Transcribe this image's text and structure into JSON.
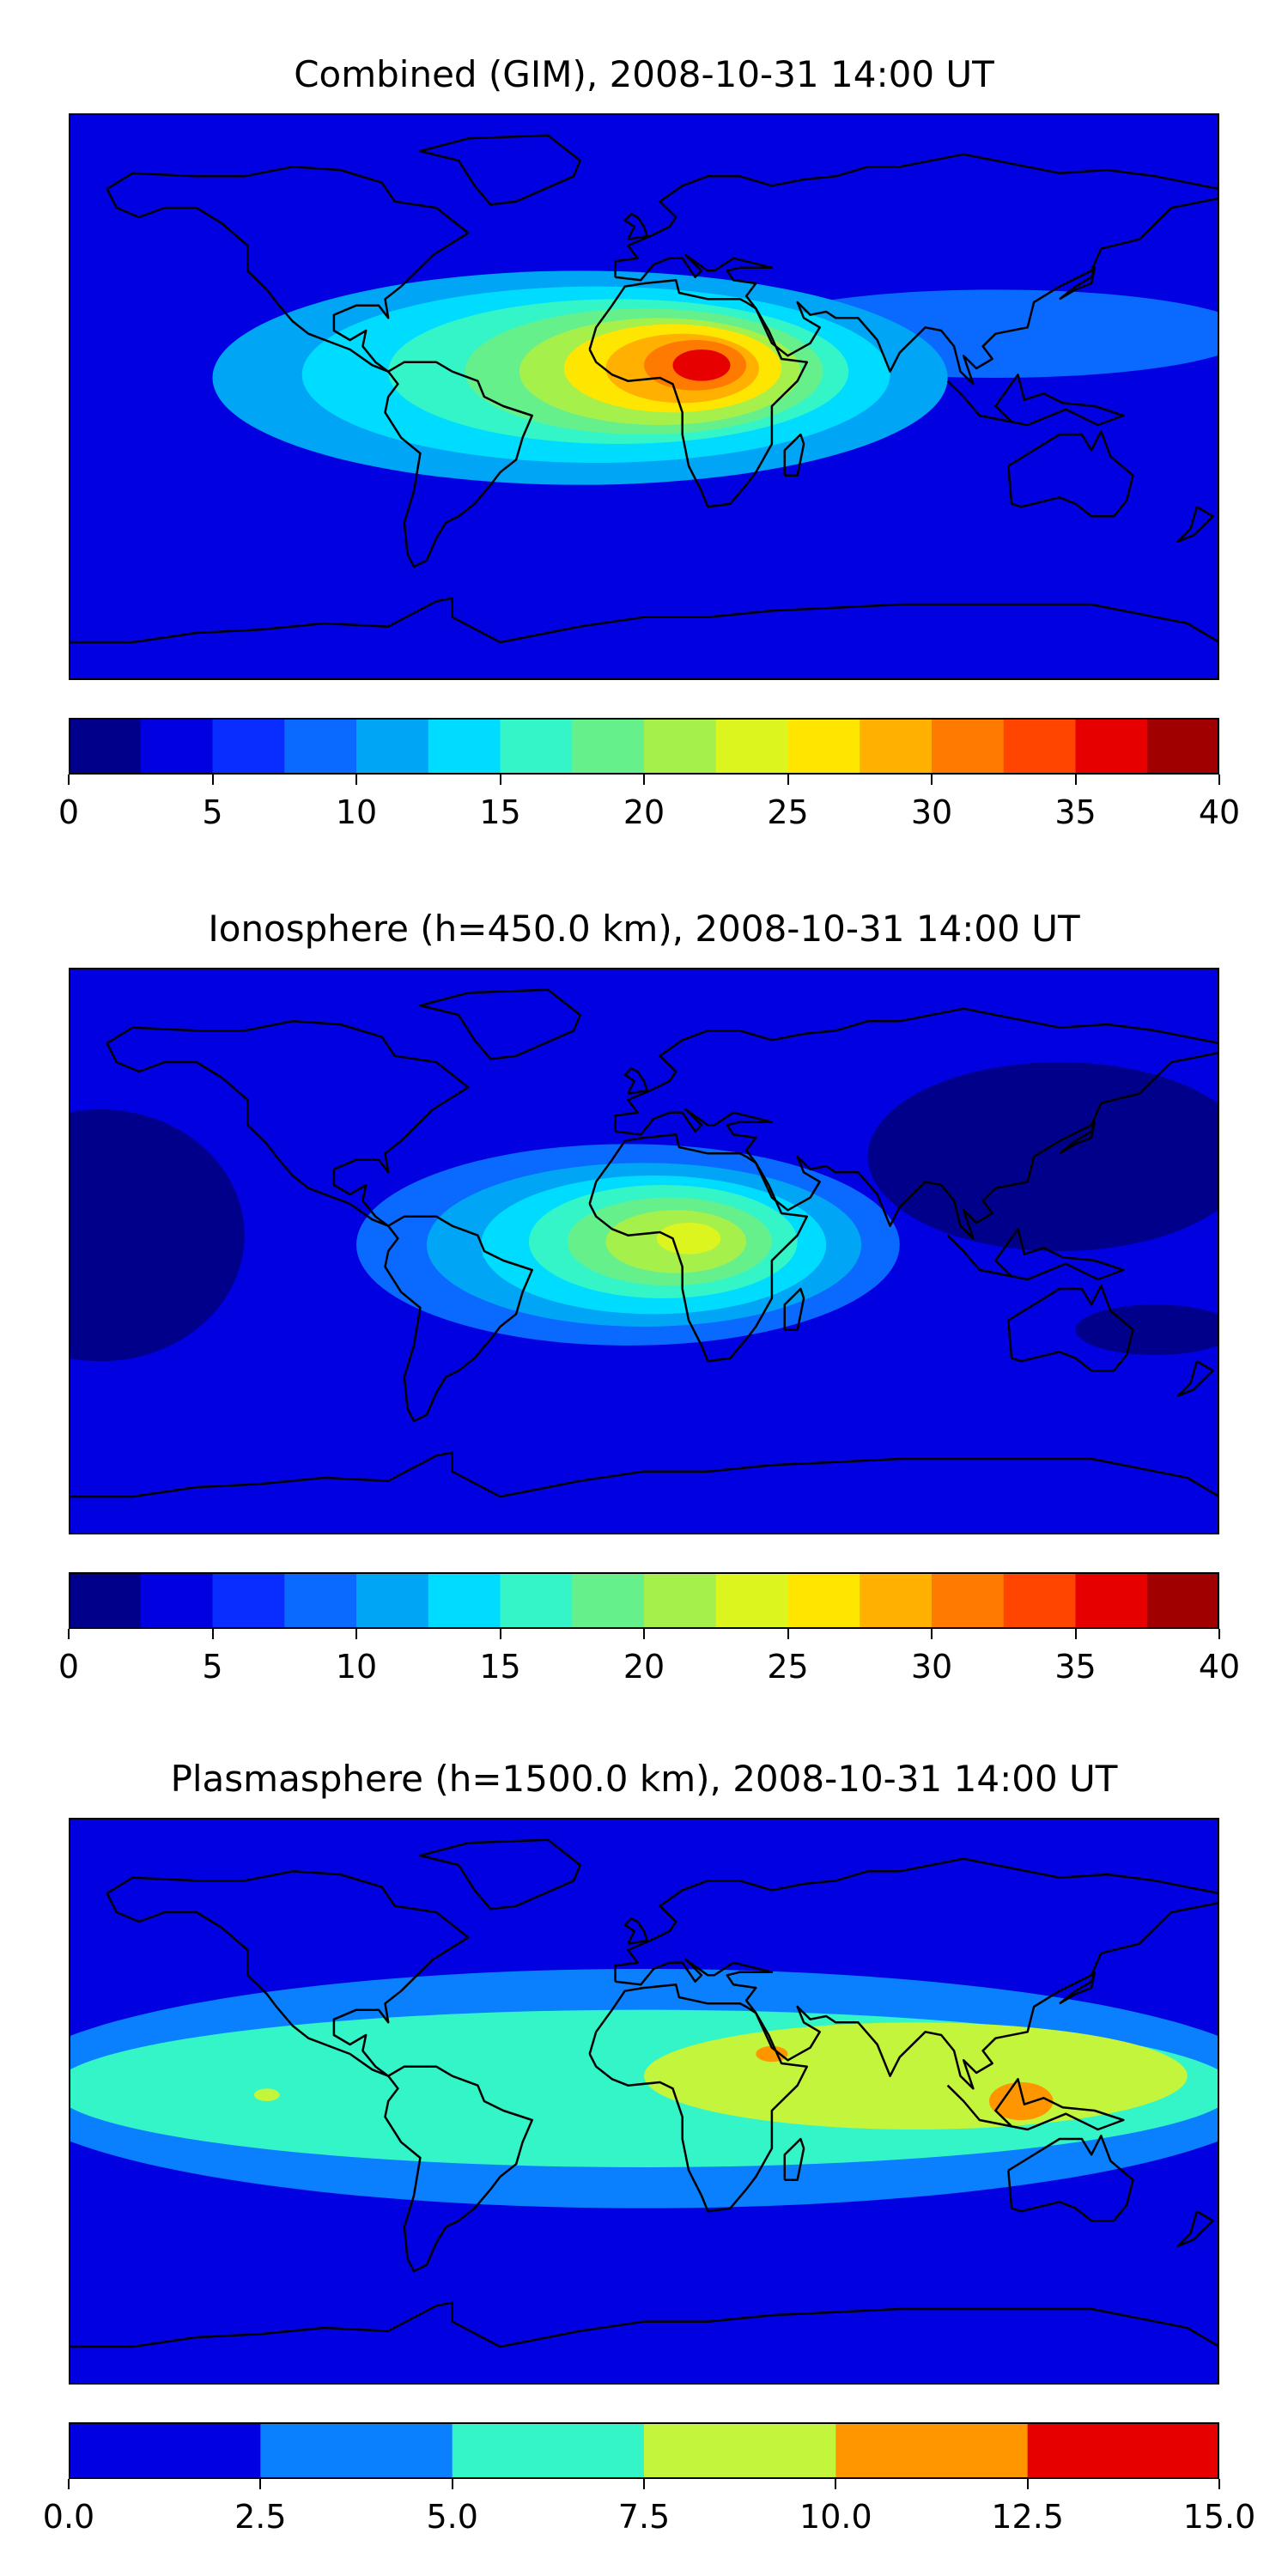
{
  "chart_data": [
    {
      "type": "heatmap",
      "title": "Combined (GIM), 2008-10-31 14:00 UT",
      "map": "world",
      "colorbar": {
        "levels": [
          0,
          2.5,
          5,
          7.5,
          10,
          12.5,
          15,
          17.5,
          20,
          22.5,
          25,
          27.5,
          30,
          32.5,
          35,
          37.5,
          40
        ],
        "colors": [
          "#00008b",
          "#0000e0",
          "#0a2dff",
          "#0a6aff",
          "#00a5f5",
          "#00dcff",
          "#33f5c8",
          "#66f08c",
          "#a6f04c",
          "#dcf51e",
          "#ffe600",
          "#ffb000",
          "#ff7a00",
          "#ff4500",
          "#e60000",
          "#a00000"
        ],
        "tick_values": [
          0,
          5,
          10,
          15,
          20,
          25,
          30,
          35,
          40
        ],
        "tick_labels": [
          "0",
          "5",
          "10",
          "15",
          "20",
          "25",
          "30",
          "35",
          "40"
        ]
      },
      "features": [
        {
          "lon": -20,
          "lat": 6,
          "sx": 115,
          "sy": 34,
          "value": 10
        },
        {
          "lon": -15,
          "lat": 7,
          "sx": 92,
          "sy": 28,
          "value": 13
        },
        {
          "lon": -8,
          "lat": 8,
          "sx": 72,
          "sy": 23,
          "value": 16
        },
        {
          "lon": 0,
          "lat": 8,
          "sx": 56,
          "sy": 20,
          "value": 19
        },
        {
          "lon": 5,
          "lat": 8,
          "sx": 44,
          "sy": 17,
          "value": 22
        },
        {
          "lon": 9,
          "lat": 9,
          "sx": 34,
          "sy": 14,
          "value": 26
        },
        {
          "lon": 12,
          "lat": 9,
          "sx": 24,
          "sy": 11,
          "value": 29
        },
        {
          "lon": 16,
          "lat": 10,
          "sx": 16,
          "sy": 8,
          "value": 32
        },
        {
          "lon": 18,
          "lat": 10,
          "sx": 9,
          "sy": 5,
          "value": 35
        }
      ],
      "extras": [
        {
          "lon": -168,
          "lat": -10,
          "sx": 16,
          "sy": 8,
          "value": 4
        },
        {
          "lon": 110,
          "lat": 20,
          "sx": 80,
          "sy": 14,
          "value": 8
        },
        {
          "lon": 140,
          "lat": -35,
          "sx": 40,
          "sy": 10,
          "value": 3
        }
      ],
      "background_value": 3
    },
    {
      "type": "heatmap",
      "title": "Ionosphere  (h=450.0 km), 2008-10-31 14:00 UT",
      "map": "world",
      "colorbar": {
        "levels": [
          0,
          2.5,
          5,
          7.5,
          10,
          12.5,
          15,
          17.5,
          20,
          22.5,
          25,
          27.5,
          30,
          32.5,
          35,
          37.5,
          40
        ],
        "colors": [
          "#00008b",
          "#0000e0",
          "#0a2dff",
          "#0a6aff",
          "#00a5f5",
          "#00dcff",
          "#33f5c8",
          "#66f08c",
          "#a6f04c",
          "#dcf51e",
          "#ffe600",
          "#ffb000",
          "#ff7a00",
          "#ff4500",
          "#e60000",
          "#a00000"
        ],
        "tick_values": [
          0,
          5,
          10,
          15,
          20,
          25,
          30,
          35,
          40
        ],
        "tick_labels": [
          "0",
          "5",
          "10",
          "15",
          "20",
          "25",
          "30",
          "35",
          "40"
        ]
      },
      "features": [
        {
          "lon": -5,
          "lat": 2,
          "sx": 85,
          "sy": 32,
          "value": 9
        },
        {
          "lon": 0,
          "lat": 2,
          "sx": 68,
          "sy": 26,
          "value": 11
        },
        {
          "lon": 3,
          "lat": 2,
          "sx": 54,
          "sy": 22,
          "value": 14
        },
        {
          "lon": 6,
          "lat": 3,
          "sx": 42,
          "sy": 18,
          "value": 16
        },
        {
          "lon": 8,
          "lat": 3,
          "sx": 32,
          "sy": 14,
          "value": 19
        },
        {
          "lon": 10,
          "lat": 3,
          "sx": 22,
          "sy": 10,
          "value": 21
        },
        {
          "lon": 14,
          "lat": 4,
          "sx": 10,
          "sy": 5,
          "value": 24
        }
      ],
      "extras": [
        {
          "lon": -170,
          "lat": 5,
          "sx": 45,
          "sy": 40,
          "value": 1
        },
        {
          "lon": 130,
          "lat": 30,
          "sx": 60,
          "sy": 30,
          "value": 1
        },
        {
          "lon": 160,
          "lat": -25,
          "sx": 25,
          "sy": 8,
          "value": 2
        }
      ],
      "background_value": 3
    },
    {
      "type": "heatmap",
      "title": "Plasmasphere (h=1500.0 km), 2008-10-31 14:00 UT",
      "map": "world",
      "colorbar": {
        "levels": [
          0.0,
          2.5,
          5.0,
          7.5,
          10.0,
          12.5,
          15.0
        ],
        "colors": [
          "#0000e0",
          "#0a80ff",
          "#33f5c8",
          "#c3f53c",
          "#ff9600",
          "#e60000"
        ],
        "tick_values": [
          0.0,
          2.5,
          5.0,
          7.5,
          10.0,
          12.5,
          15.0
        ],
        "tick_labels": [
          "0.0",
          "2.5",
          "5.0",
          "7.5",
          "10.0",
          "12.5",
          "15.0"
        ]
      },
      "features": [
        {
          "lon": 0,
          "lat": 4,
          "sx": 200,
          "sy": 38,
          "value": 4
        },
        {
          "lon": 0,
          "lat": 4,
          "sx": 185,
          "sy": 25,
          "value": 6
        },
        {
          "lon": 85,
          "lat": 8,
          "sx": 85,
          "sy": 17,
          "value": 9
        },
        {
          "lon": 40,
          "lat": 15,
          "sx": 5,
          "sy": 2.5,
          "value": 11
        },
        {
          "lon": 118,
          "lat": 0,
          "sx": 10,
          "sy": 6,
          "value": 11
        },
        {
          "lon": -118,
          "lat": 2,
          "sx": 4,
          "sy": 2,
          "value": 9
        }
      ],
      "extras": [],
      "background_value": 1
    }
  ]
}
